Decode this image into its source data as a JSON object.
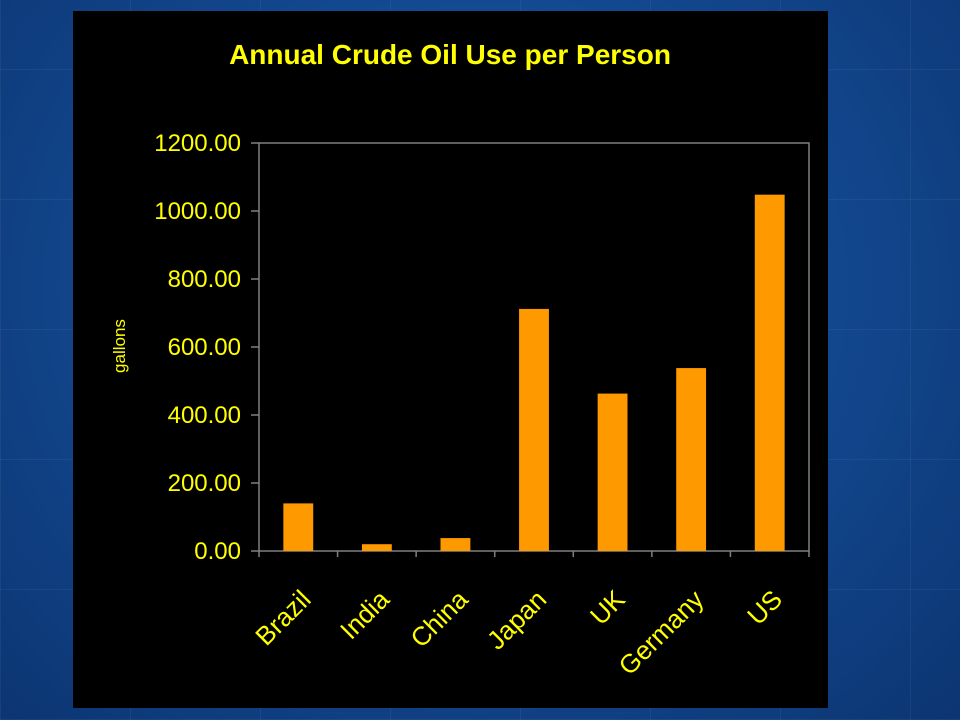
{
  "colors": {
    "background": "#1a4f9c",
    "panel": "#000000",
    "text": "#ffff00",
    "bar": "#ff9900",
    "axis": "#808080"
  },
  "chart_data": {
    "type": "bar",
    "title": "Annual Crude Oil Use per Person",
    "xlabel": "",
    "ylabel": "gallons",
    "ylim": [
      0,
      1200
    ],
    "yticks": [
      "0.00",
      "200.00",
      "400.00",
      "600.00",
      "800.00",
      "1000.00",
      "1200.00"
    ],
    "categories": [
      "Brazil",
      "India",
      "China",
      "Japan",
      "UK",
      "Germany",
      "US"
    ],
    "values": [
      140,
      20,
      38,
      712,
      463,
      538,
      1048
    ],
    "grid": false,
    "legend": "none"
  }
}
